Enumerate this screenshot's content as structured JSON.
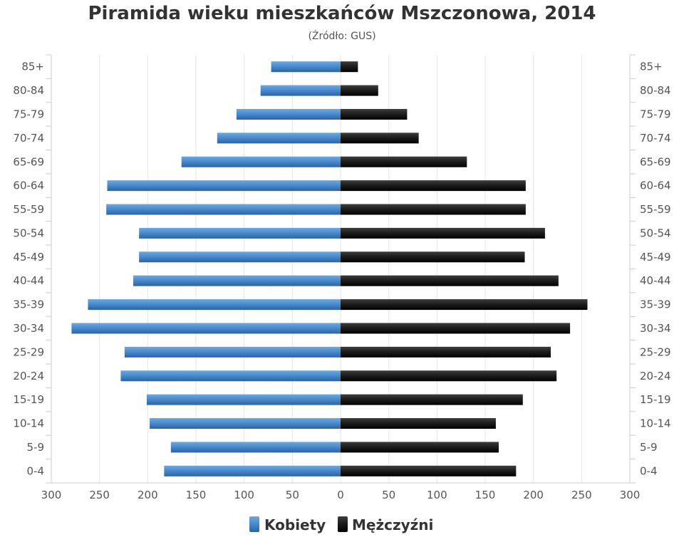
{
  "chart_data": {
    "type": "bar",
    "orientation": "horizontal",
    "title": "Piramida wieku mieszkańców Mszczonowa, 2014",
    "subtitle": "(Źródło: GUS)",
    "categories": [
      "85+",
      "80-84",
      "75-79",
      "70-74",
      "65-69",
      "60-64",
      "55-59",
      "50-54",
      "45-49",
      "40-44",
      "35-39",
      "30-34",
      "25-29",
      "20-24",
      "15-19",
      "10-14",
      "5-9",
      "0-4"
    ],
    "x_ticks": [
      "300",
      "250",
      "200",
      "150",
      "100",
      "50",
      "0",
      "50",
      "100",
      "150",
      "200",
      "250",
      "300"
    ],
    "xlim": [
      -300,
      300
    ],
    "grid": true,
    "legend_position": "bottom",
    "series": [
      {
        "name": "Kobiety",
        "color": "#3d7dbd",
        "side": "left",
        "values": [
          72,
          83,
          108,
          128,
          165,
          242,
          243,
          209,
          209,
          215,
          262,
          279,
          224,
          228,
          201,
          198,
          176,
          183
        ]
      },
      {
        "name": "Mężczyźni",
        "color": "#1a1a1a",
        "side": "right",
        "values": [
          18,
          39,
          69,
          81,
          131,
          192,
          192,
          212,
          191,
          226,
          256,
          238,
          218,
          224,
          189,
          161,
          164,
          182
        ]
      }
    ]
  }
}
